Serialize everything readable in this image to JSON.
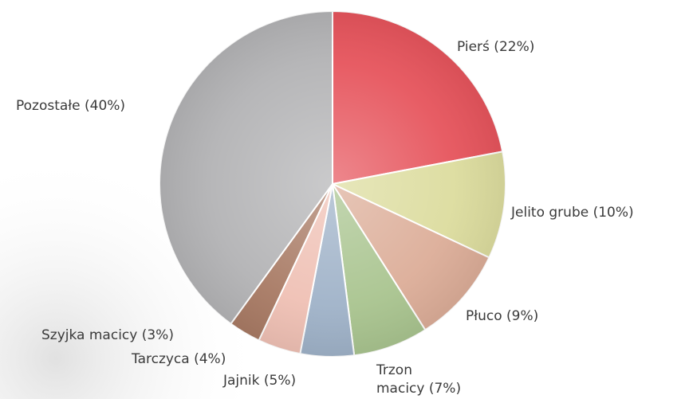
{
  "chart_data": {
    "type": "pie",
    "title": "",
    "slices": [
      {
        "label": "Pierś (22%)",
        "value": 22,
        "color": "#e6545c"
      },
      {
        "label": "Jelito grube (10%)",
        "value": 10,
        "color": "#dcdc9e"
      },
      {
        "label": "Płuco (9%)",
        "value": 9,
        "color": "#dcad98"
      },
      {
        "label": "Trzon macicy (7%)",
        "value": 7,
        "color": "#a9c48f"
      },
      {
        "label": "Jajnik (5%)",
        "value": 5,
        "color": "#9fb2c8"
      },
      {
        "label": "Tarczyca (4%)",
        "value": 4,
        "color": "#efc0b4"
      },
      {
        "label": "Szyjka macicy (3%)",
        "value": 3,
        "color": "#a87a64"
      },
      {
        "label": "Pozostałe (40%)",
        "value": 40,
        "color": "#b3b3b5"
      }
    ],
    "start_angle_deg": 0,
    "direction": "clockwise",
    "legend": "none"
  }
}
